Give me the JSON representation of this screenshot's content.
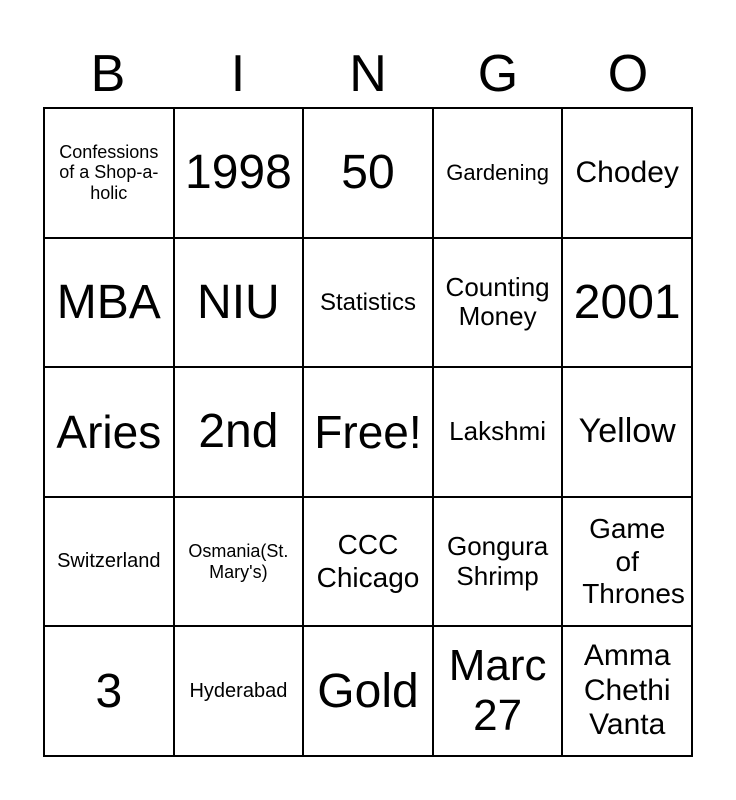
{
  "header": [
    "B",
    "I",
    "N",
    "G",
    "O"
  ],
  "cells": [
    {
      "text": "Confessions of a Shop-a-holic",
      "size": 18
    },
    {
      "text": "1998",
      "size": 48
    },
    {
      "text": "50",
      "size": 48
    },
    {
      "text": "Gardening",
      "size": 22
    },
    {
      "text": "Chodey",
      "size": 30
    },
    {
      "text": "MBA",
      "size": 48
    },
    {
      "text": "NIU",
      "size": 48
    },
    {
      "text": "Statistics",
      "size": 24
    },
    {
      "text": "Counting Money",
      "size": 26
    },
    {
      "text": "2001",
      "size": 48
    },
    {
      "text": "Aries",
      "size": 46
    },
    {
      "text": "2nd",
      "size": 48
    },
    {
      "text": "Free!",
      "size": 46
    },
    {
      "text": "Lakshmi",
      "size": 26
    },
    {
      "text": "Yellow",
      "size": 34
    },
    {
      "text": "Switzerland",
      "size": 20
    },
    {
      "text": "Osmania(St. Mary's)",
      "size": 18
    },
    {
      "text": "CCC Chicago",
      "size": 28
    },
    {
      "text": "Gongura Shrimp",
      "size": 26
    },
    {
      "text": "Game of Thrones",
      "size": 28
    },
    {
      "text": "3",
      "size": 48
    },
    {
      "text": "Hyderabad",
      "size": 20
    },
    {
      "text": "Gold",
      "size": 48
    },
    {
      "text": "Marc 27",
      "size": 44
    },
    {
      "text": "Amma Chethi Vanta",
      "size": 30
    }
  ]
}
